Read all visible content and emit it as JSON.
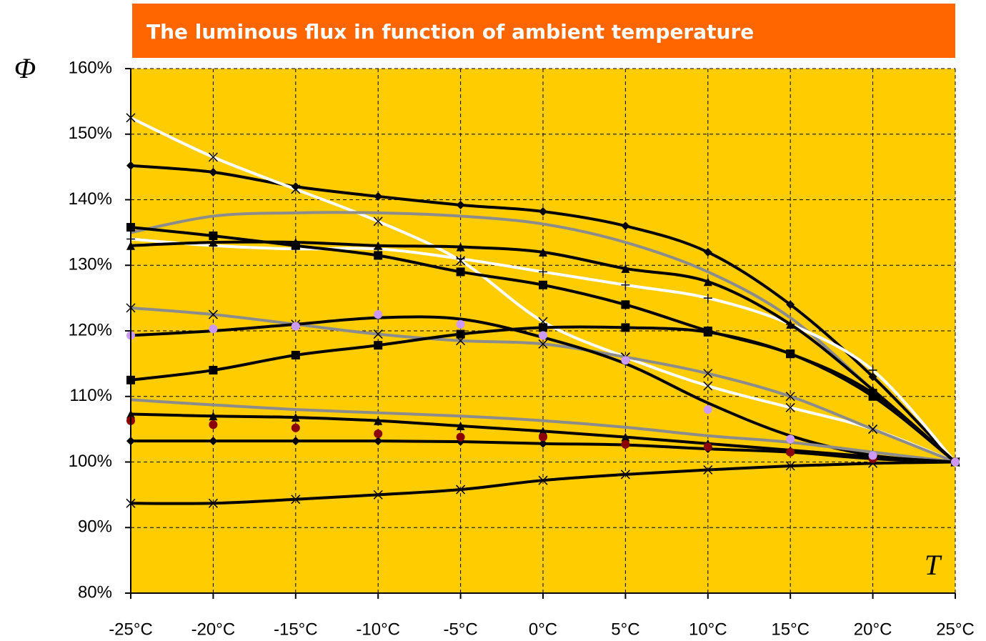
{
  "chart_data": {
    "type": "line",
    "title": "The luminous flux in function of ambient temperature",
    "y_label": "Φ",
    "x_label": "T",
    "categories": [
      "-25°C",
      "-20°C",
      "-15°C",
      "-10°C",
      "-5°C",
      "0°C",
      "5°C",
      "10°C",
      "15°C",
      "20°C",
      "25°C"
    ],
    "ylim": [
      80,
      160
    ],
    "yticks": [
      {
        "value": 80,
        "label": "80%"
      },
      {
        "value": 90,
        "label": "90%"
      },
      {
        "value": 100,
        "label": "100%"
      },
      {
        "value": 110,
        "label": "110%"
      },
      {
        "value": 120,
        "label": "120%"
      },
      {
        "value": 130,
        "label": "130%"
      },
      {
        "value": 140,
        "label": "140%"
      },
      {
        "value": 150,
        "label": "150%"
      },
      {
        "value": 160,
        "label": "160%"
      }
    ],
    "grid": true,
    "plot_color": "#ffcc00",
    "title_color": "#ff6600",
    "series": [
      {
        "color": "#000000",
        "marker": "diamond",
        "line": true,
        "values": [
          145.2,
          144.2,
          142,
          140.5,
          139.2,
          138.2,
          136,
          132,
          124,
          113,
          100
        ]
      },
      {
        "color": "#ffffff",
        "marker": "x",
        "line": true,
        "values": [
          152.5,
          146.5,
          141.6,
          136.7,
          130.7,
          121.4,
          116,
          111.6,
          108.3,
          105,
          100
        ]
      },
      {
        "color": "#8c8c8c",
        "marker": "none",
        "line": true,
        "values": [
          135,
          137.5,
          138,
          138,
          137.5,
          136.3,
          133.5,
          129,
          122,
          111,
          100
        ]
      },
      {
        "color": "#ffffff",
        "marker": "plus",
        "line": true,
        "values": [
          134,
          133,
          132.5,
          132.5,
          131,
          129,
          127,
          125,
          121,
          114,
          100
        ]
      },
      {
        "color": "#000000",
        "marker": "square",
        "line": true,
        "values": [
          135.8,
          134.5,
          133,
          131.5,
          129,
          127,
          124,
          120,
          116.5,
          110.5,
          100
        ]
      },
      {
        "color": "#000000",
        "marker": "triangle",
        "line": true,
        "values": [
          133,
          133.5,
          133.5,
          133,
          132.8,
          132,
          129.5,
          127.5,
          121,
          111,
          100
        ]
      },
      {
        "color": "#8c8c8c",
        "marker": "x",
        "line": true,
        "values": [
          123.5,
          122.5,
          121,
          119.5,
          118.5,
          118,
          116,
          113.5,
          110,
          105,
          100
        ]
      },
      {
        "color": "#000000",
        "marker": "none",
        "line": true,
        "values": [
          119.3,
          120,
          121,
          122,
          121.8,
          119,
          115,
          109,
          104,
          101,
          100
        ]
      },
      {
        "color": "#000000",
        "marker": "square",
        "line": true,
        "values": [
          112.5,
          114,
          116.3,
          117.8,
          119.5,
          120.5,
          120.5,
          119.8,
          116.5,
          110,
          100
        ]
      },
      {
        "color": "#8c8c8c",
        "marker": "none",
        "line": true,
        "values": [
          109.5,
          108.7,
          108,
          107.5,
          107,
          106.3,
          105.3,
          104,
          103,
          101.5,
          100
        ]
      },
      {
        "color": "#000000",
        "marker": "triangle",
        "line": true,
        "values": [
          107.3,
          107,
          106.8,
          106.3,
          105.5,
          104.7,
          103.8,
          102.8,
          101.8,
          100.8,
          100
        ]
      },
      {
        "color": "#000000",
        "marker": "diamond",
        "line": true,
        "values": [
          103.2,
          103.2,
          103.2,
          103.2,
          103.1,
          102.8,
          102.6,
          102,
          101.5,
          100.5,
          100
        ]
      },
      {
        "color": "#000000",
        "marker": "x",
        "line": true,
        "values": [
          93.7,
          93.7,
          94.3,
          95,
          95.8,
          97.2,
          98.1,
          98.8,
          99.4,
          99.8,
          100
        ]
      },
      {
        "color": "#8b0000",
        "marker": "circle",
        "line": false,
        "values": [
          106.3,
          105.7,
          105.2,
          104.3,
          103.8,
          103.8,
          102.7,
          102.3,
          101.5,
          100.5,
          100
        ]
      },
      {
        "color": "#cc99ff",
        "marker": "circle",
        "line": false,
        "values": [
          119.3,
          120.3,
          120.7,
          122.5,
          121,
          119.3,
          115.5,
          108,
          103.5,
          101,
          100
        ]
      }
    ]
  }
}
